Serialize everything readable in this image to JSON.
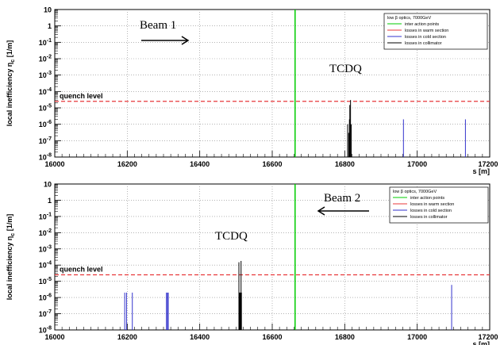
{
  "chart_data": [
    {
      "type": "bar",
      "panel": "top",
      "xlabel": "s [m]",
      "ylabel": "local inefficiency η_c [1/m]",
      "ylabel_main": "local inefficiency η",
      "ylabel_sub": "c",
      "ylabel_unit": " [1/m]",
      "xlim": [
        16000,
        17200
      ],
      "ylim_exp": [
        -8,
        1
      ],
      "log_y": true,
      "x_ticks": [
        "16000",
        "16200",
        "16400",
        "16600",
        "16800",
        "17000",
        "17200"
      ],
      "x_tick_values": [
        16000,
        16200,
        16400,
        16600,
        16800,
        17000,
        17200
      ],
      "y_tick_labels": [
        {
          "base": "10",
          "exp": "",
          "e": 1
        },
        {
          "base": "1",
          "exp": "",
          "e": 0
        },
        {
          "base": "10",
          "exp": "-1",
          "e": -1
        },
        {
          "base": "10",
          "exp": "-2",
          "e": -2
        },
        {
          "base": "10",
          "exp": "-3",
          "e": -3
        },
        {
          "base": "10",
          "exp": "-4",
          "e": -4
        },
        {
          "base": "10",
          "exp": "-5",
          "e": -5
        },
        {
          "base": "10",
          "exp": "-6",
          "e": -6
        },
        {
          "base": "10",
          "exp": "-7",
          "e": -7
        },
        {
          "base": "10",
          "exp": "-8",
          "e": -8
        }
      ],
      "grid": true,
      "ip_line_s": 16663,
      "quench_level": 2.5e-05,
      "quench_label": "quench level",
      "legend": {
        "placement": "top-right",
        "title": "low β optics, 7000GeV",
        "entries": [
          {
            "label": "inter action points",
            "color": "#00cc00"
          },
          {
            "label": "losses in warm section",
            "color": "#e8383b"
          },
          {
            "label": "losses in cold section",
            "color": "#3333cc"
          },
          {
            "label": "losses in collimator",
            "color": "#000000"
          }
        ]
      },
      "annotations": [
        {
          "text": "Beam 1"
        },
        {
          "text": "TCDQ"
        }
      ],
      "beam_direction": "right",
      "series": [
        {
          "name": "losses in collimator",
          "color": "#000000",
          "points": [
            [
              16808,
              1e-06
            ],
            [
              16811,
              3e-07
            ],
            [
              16813,
              2e-06
            ],
            [
              16814,
              1.5e-05
            ],
            [
              16816,
              3e-05
            ],
            [
              16818,
              1e-06
            ]
          ]
        },
        {
          "name": "losses in cold section",
          "color": "#3333cc",
          "points": [
            [
              16962,
              2e-06
            ],
            [
              17133,
              2e-06
            ]
          ]
        }
      ]
    },
    {
      "type": "bar",
      "panel": "bottom",
      "xlabel": "s [m]",
      "ylabel": "local inefficiency η_c [1/m]",
      "ylabel_main": "local inefficiency η",
      "ylabel_sub": "c",
      "ylabel_unit": " [1/m]",
      "xlim": [
        16000,
        17200
      ],
      "ylim_exp": [
        -8,
        1
      ],
      "log_y": true,
      "x_ticks": [
        "16000",
        "16200",
        "16400",
        "16600",
        "16800",
        "17000",
        "17200"
      ],
      "x_tick_values": [
        16000,
        16200,
        16400,
        16600,
        16800,
        17000,
        17200
      ],
      "y_tick_labels": [
        {
          "base": "10",
          "exp": "",
          "e": 1
        },
        {
          "base": "1",
          "exp": "",
          "e": 0
        },
        {
          "base": "10",
          "exp": "-1",
          "e": -1
        },
        {
          "base": "10",
          "exp": "-2",
          "e": -2
        },
        {
          "base": "10",
          "exp": "-3",
          "e": -3
        },
        {
          "base": "10",
          "exp": "-4",
          "e": -4
        },
        {
          "base": "10",
          "exp": "-5",
          "e": -5
        },
        {
          "base": "10",
          "exp": "-6",
          "e": -6
        },
        {
          "base": "10",
          "exp": "-7",
          "e": -7
        },
        {
          "base": "10",
          "exp": "-8",
          "e": -8
        }
      ],
      "grid": true,
      "ip_line_s": 16663,
      "quench_level": 2.5e-05,
      "quench_label": "quench level",
      "legend": {
        "placement": "top-right",
        "title": "low β optics, 7000GeV",
        "entries": [
          {
            "label": "inter action points",
            "color": "#00cc00"
          },
          {
            "label": "losses in warm section",
            "color": "#e8383b"
          },
          {
            "label": "losses in cold section",
            "color": "#3333cc"
          },
          {
            "label": "losses in collimator",
            "color": "#000000"
          }
        ]
      },
      "annotations": [
        {
          "text": "Beam 2"
        },
        {
          "text": "TCDQ"
        }
      ],
      "beam_direction": "left",
      "series": [
        {
          "name": "losses in collimator",
          "color": "#000000",
          "points": [
            [
              16508,
              0.00015
            ],
            [
              16510,
              2e-06
            ],
            [
              16511,
              2e-06
            ],
            [
              16512,
              2e-06
            ],
            [
              16513,
              2e-06
            ],
            [
              16514,
              0.00018
            ],
            [
              16515,
              2e-06
            ]
          ]
        },
        {
          "name": "losses in cold section",
          "color": "#3333cc",
          "points": [
            [
              16193,
              2e-06
            ],
            [
              16198,
              2e-06
            ],
            [
              16214,
              2e-06
            ],
            [
              16308,
              2e-06
            ],
            [
              16311,
              2e-06
            ],
            [
              16313,
              2e-06
            ],
            [
              17095,
              6e-06
            ]
          ]
        }
      ]
    }
  ]
}
